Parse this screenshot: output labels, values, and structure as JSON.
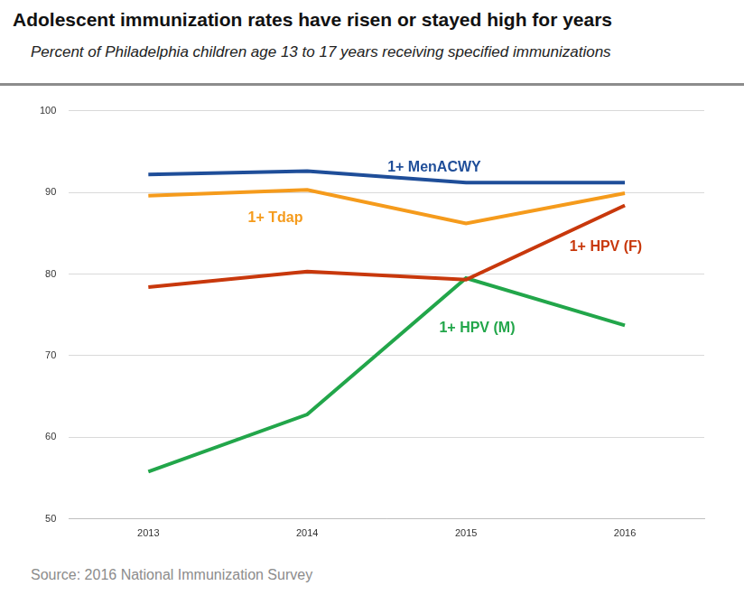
{
  "chart_data": {
    "type": "line",
    "title": "Adolescent immunization rates have risen or stayed high for years",
    "subtitle": "Percent of Philadelphia children age 13 to 17 years receiving specified immunizations",
    "source": "Source: 2016 National Immunization Survey",
    "categories": [
      "2013",
      "2014",
      "2015",
      "2016"
    ],
    "series": [
      {
        "name": "1+ MenACWY",
        "color": "#1f4e99",
        "values": [
          92.2,
          92.6,
          91.2,
          91.2
        ]
      },
      {
        "name": "1+ Tdap",
        "color": "#f59b1c",
        "values": [
          89.6,
          90.3,
          86.2,
          89.9
        ]
      },
      {
        "name": "1+ HPV (F)",
        "color": "#c8380c",
        "values": [
          78.4,
          80.3,
          79.3,
          88.4
        ]
      },
      {
        "name": "1+ HPV (M)",
        "color": "#22a64a",
        "values": [
          55.8,
          62.8,
          79.5,
          73.7
        ]
      }
    ],
    "ylim": [
      50,
      100
    ],
    "yticks": [
      50,
      60,
      70,
      80,
      90,
      100
    ],
    "grid": true
  }
}
